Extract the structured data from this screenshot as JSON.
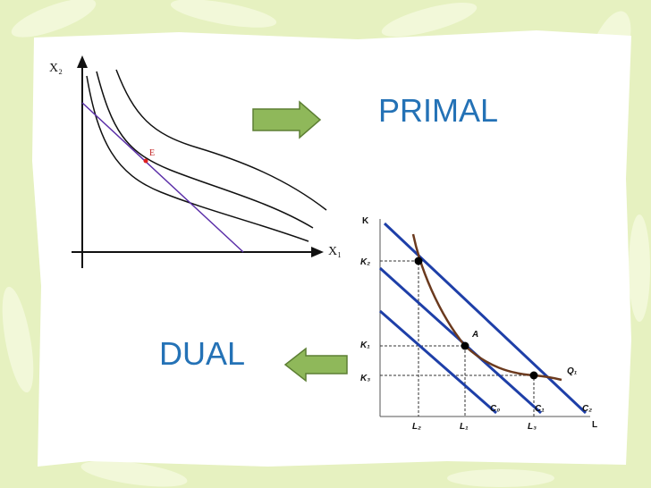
{
  "slide": {
    "primal": "PRIMAL",
    "dual": "DUAL"
  },
  "primal_diagram": {
    "y_axis": "X₂",
    "x_axis": "X₁",
    "point": "E"
  },
  "dual_diagram": {
    "y_axis": "K",
    "x_axis": "L",
    "k_labels": [
      "K₂",
      "K₁",
      "K₃"
    ],
    "l_labels": [
      "L₂",
      "L₁",
      "L₃"
    ],
    "cost_labels": [
      "C₀",
      "C₁",
      "C₂"
    ],
    "isoquant": "Q₁",
    "point": "A"
  }
}
